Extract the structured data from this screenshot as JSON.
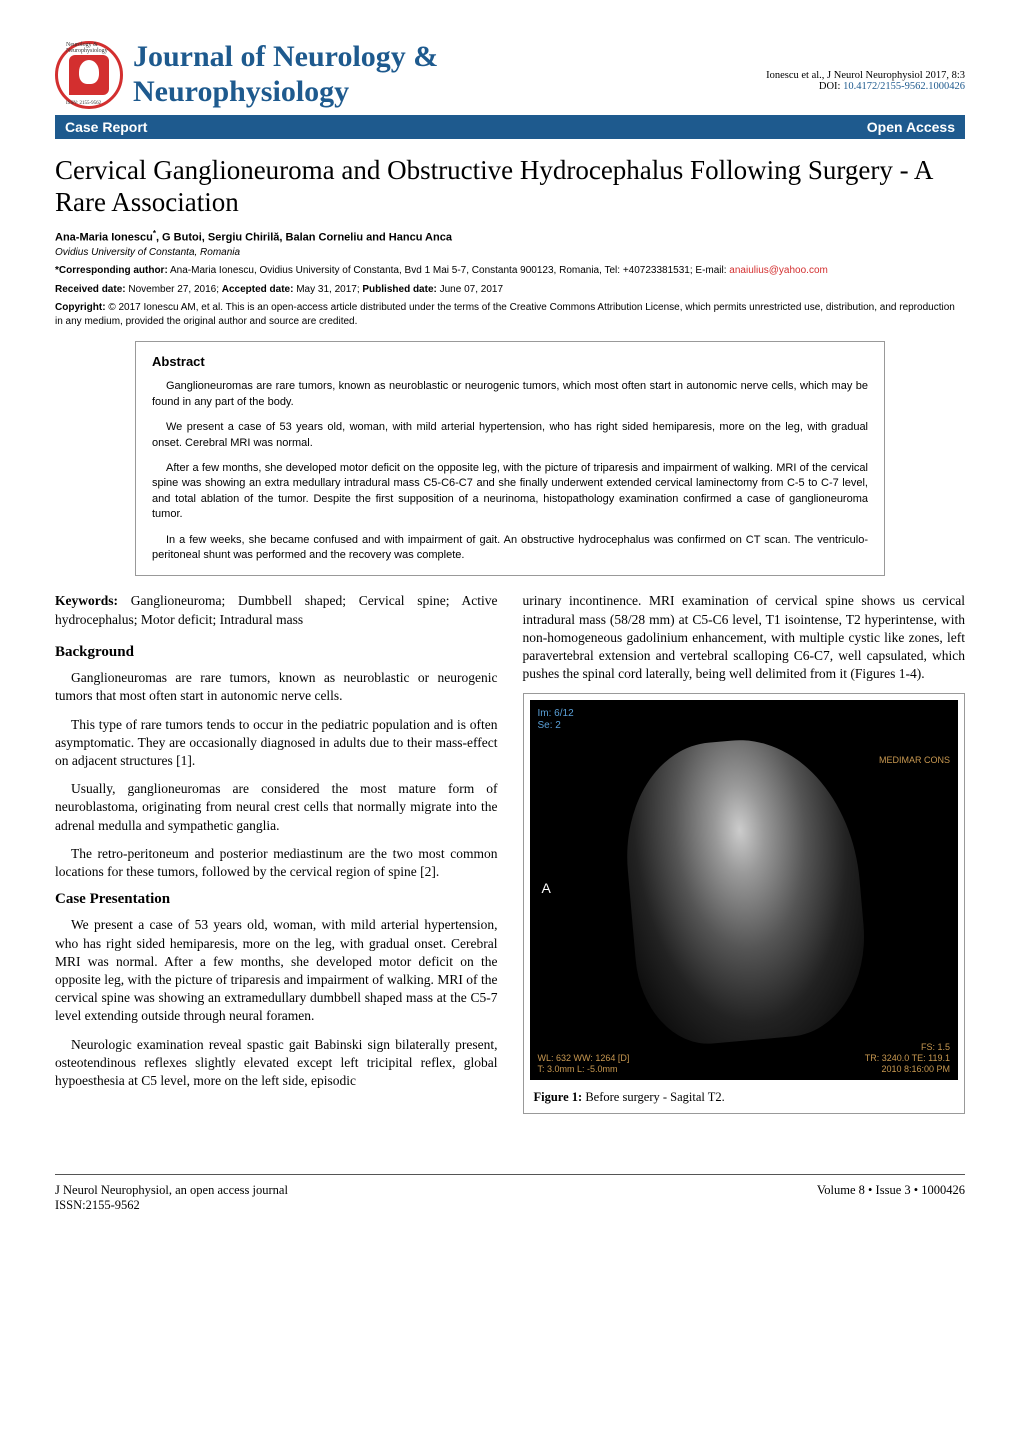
{
  "header": {
    "journal_title_line1": "Journal of Neurology &",
    "journal_title_line2": "Neurophysiology",
    "citation": "Ionescu et al., J Neurol Neurophysiol 2017, 8:3",
    "doi_prefix": "DOI: ",
    "doi": "10.4172/2155-9562.1000426",
    "logo_ring_text": "Neurology & Neurophysiology",
    "logo_issn": "ISSN: 2155-9562"
  },
  "bar": {
    "left": "Case Report",
    "right": "Open Access"
  },
  "article": {
    "title": "Cervical Ganglioneuroma and Obstructive Hydrocephalus Following Surgery - A Rare Association",
    "authors": "Ana-Maria Ionescu",
    "authors_sup": "*",
    "authors_rest": ", G Butoi, Sergiu Chirilă, Balan Corneliu and Hancu Anca",
    "affiliation": "Ovidius University of Constanta, Romania",
    "corresponding_label": "*Corresponding author:",
    "corresponding_text": " Ana-Maria Ionescu, Ovidius University of Constanta, Bvd 1 Mai 5-7, Constanta 900123, Romania, Tel: +40723381531; E-mail: ",
    "corresponding_email": "anaiulius@yahoo.com",
    "received_label": "Received date:",
    "received": " November 27, 2016; ",
    "accepted_label": "Accepted date:",
    "accepted": " May 31, 2017; ",
    "published_label": "Published date:",
    "published": " June 07, 2017",
    "copyright_label": "Copyright:",
    "copyright_text": " © 2017 Ionescu AM, et al. This is an open-access article distributed under the terms of the Creative Commons Attribution License, which permits unrestricted use, distribution, and reproduction in any medium, provided the original author and source are credited."
  },
  "abstract": {
    "heading": "Abstract",
    "p1": "Ganglioneuromas are rare tumors, known as neuroblastic or neurogenic tumors, which most often start in autonomic nerve cells, which may be found in any part of the body.",
    "p2": "We present a case of 53 years old, woman, with mild arterial hypertension, who has right sided hemiparesis, more on the leg, with gradual onset. Cerebral MRI was normal.",
    "p3": "After a few months, she developed motor deficit on the opposite leg, with the picture of triparesis and impairment of walking. MRI of the cervical spine was showing an extra medullary intradural mass C5-C6-C7 and she finally underwent extended cervical laminectomy from C-5 to C-7 level, and total ablation of the tumor. Despite the first supposition of a neurinoma, histopathology examination confirmed a case of ganglioneuroma tumor.",
    "p4": "In a few weeks, she became confused and with impairment of gait. An obstructive hydrocephalus was confirmed on CT scan. The ventriculo-peritoneal shunt was performed and the recovery was complete."
  },
  "keywords": {
    "label": "Keywords:",
    "text": " Ganglioneuroma; Dumbbell shaped; Cervical spine; Active hydrocephalus; Motor deficit; Intradural mass"
  },
  "background": {
    "heading": "Background",
    "p1": "Ganglioneuromas are rare tumors, known as neuroblastic or neurogenic tumors that most often start in autonomic nerve cells.",
    "p2": "This type of rare tumors tends to occur in the pediatric population and is often asymptomatic. They are occasionally diagnosed in adults due to their mass-effect on adjacent structures [1].",
    "p3": "Usually, ganglioneuromas are considered the most mature form of neuroblastoma, originating from neural crest cells that normally migrate into the adrenal medulla and sympathetic ganglia.",
    "p4": "The retro-peritoneum and posterior mediastinum are the two most common locations for these tumors, followed by the cervical region of spine [2]."
  },
  "case": {
    "heading": "Case Presentation",
    "p1": "We present a case of 53 years old, woman, with mild arterial hypertension, who has right sided hemiparesis, more on the leg, with gradual onset. Cerebral MRI was normal. After a few months, she developed motor deficit on the opposite leg, with the picture of triparesis and impairment of walking. MRI of the cervical spine was showing an extramedullary dumbbell shaped mass at the C5-7 level extending outside through neural foramen.",
    "p2": "Neurologic examination reveal spastic gait Babinski sign bilaterally present, osteotendinous reflexes slightly elevated except left tricipital reflex, global hypoesthesia at C5 level, more on the left side, episodic",
    "p3_right": "urinary incontinence. MRI examination of cervical spine shows us cervical intradural mass (58/28 mm) at C5-C6 level, T1 isointense, T2 hyperintense, with non-homogeneous gadolinium enhancement, with multiple cystic like zones, left paravertebral extension and vertebral scalloping C6-C7, well capsulated, which pushes the spinal cord laterally, being well delimited from it (Figures 1-4)."
  },
  "figure1": {
    "mri_tl_line1": "Im: 6/12",
    "mri_tl_line2": "Se: 2",
    "mri_tr": "MEDIMAR CONS",
    "mri_bl_line1": "WL: 632 WW: 1264 [D]",
    "mri_bl_line2": "T: 3.0mm L: -5.0mm",
    "mri_br_line1": "FS: 1.5",
    "mri_br_line2": "TR: 3240.0 TE: 119.1",
    "mri_br_line3": "2010 8:16:00 PM",
    "mri_letter": "A",
    "caption_label": "Figure 1:",
    "caption_text": " Before surgery - Sagital T2."
  },
  "footer": {
    "left_line1": "J Neurol Neurophysiol, an open access journal",
    "left_line2": "ISSN:2155-9562",
    "right": "Volume 8 • Issue 3 • 1000426"
  },
  "colors": {
    "journal_blue": "#1e5a8e",
    "logo_red": "#d32f2f",
    "email_red": "#d32f2f",
    "bar_blue": "#1e5a8e",
    "mri_overlay_blue": "#5aa0d8",
    "mri_overlay_orange": "#c89850"
  }
}
